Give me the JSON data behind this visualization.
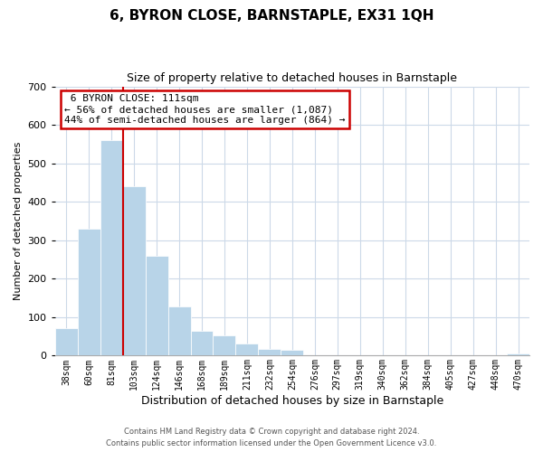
{
  "title": "6, BYRON CLOSE, BARNSTAPLE, EX31 1QH",
  "subtitle": "Size of property relative to detached houses in Barnstaple",
  "xlabel": "Distribution of detached houses by size in Barnstaple",
  "ylabel": "Number of detached properties",
  "bar_color": "#b8d4e8",
  "annotation_line_color": "#cc0000",
  "categories": [
    "38sqm",
    "60sqm",
    "81sqm",
    "103sqm",
    "124sqm",
    "146sqm",
    "168sqm",
    "189sqm",
    "211sqm",
    "232sqm",
    "254sqm",
    "276sqm",
    "297sqm",
    "319sqm",
    "340sqm",
    "362sqm",
    "384sqm",
    "405sqm",
    "427sqm",
    "448sqm",
    "470sqm"
  ],
  "values": [
    72,
    330,
    560,
    440,
    260,
    128,
    65,
    53,
    32,
    18,
    15,
    0,
    0,
    0,
    0,
    0,
    0,
    0,
    0,
    0,
    5
  ],
  "ylim": [
    0,
    700
  ],
  "yticks": [
    0,
    100,
    200,
    300,
    400,
    500,
    600,
    700
  ],
  "property_label": "6 BYRON CLOSE: 111sqm",
  "smaller_pct": "56%",
  "smaller_count": "1,087",
  "larger_pct": "44%",
  "larger_count": "864",
  "footnote1": "Contains HM Land Registry data © Crown copyright and database right 2024.",
  "footnote2": "Contains public sector information licensed under the Open Government Licence v3.0.",
  "background_color": "#ffffff",
  "grid_color": "#ccd9e8"
}
